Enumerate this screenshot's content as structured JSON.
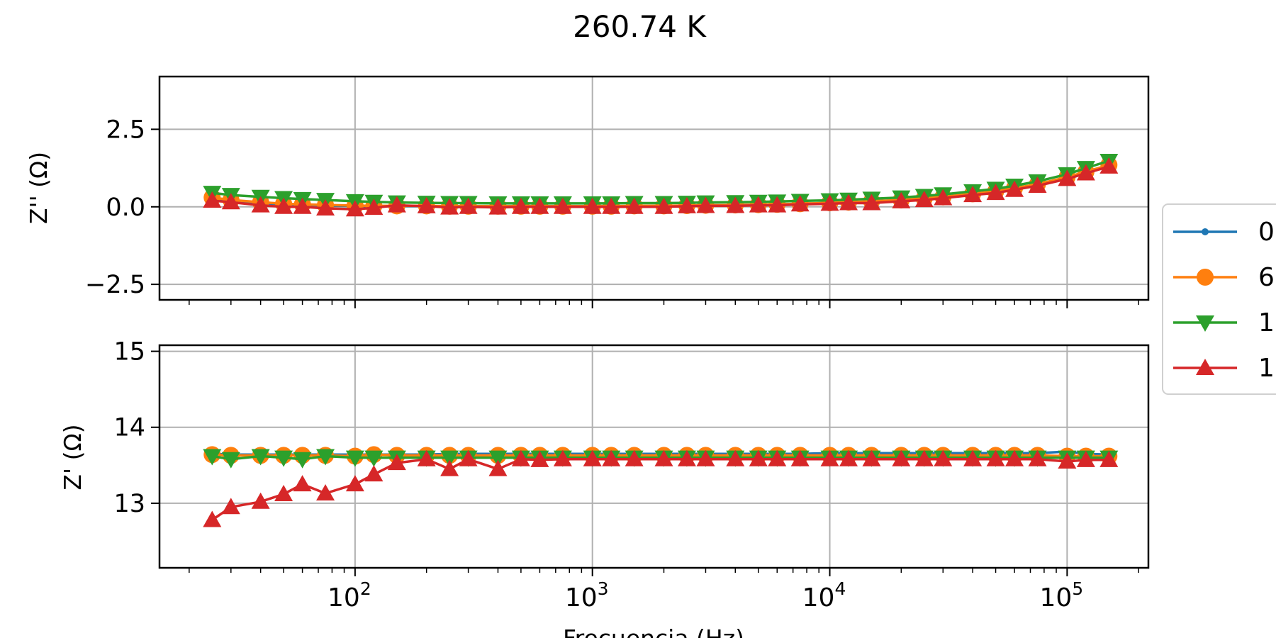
{
  "figure": {
    "title": "260.74 K",
    "legend_placement": "right, outside (clipped)",
    "colors": {
      "s0": "#1f77b4",
      "s1": "#ff7f0e",
      "s2": "#2ca02c",
      "s3": "#d62728",
      "grid": "#b0b0b0"
    }
  },
  "chart_data": [
    {
      "type": "line",
      "panel": "top",
      "ylabel": "Z'' (Ω)",
      "xlabel": "",
      "xscale": "log",
      "xlim": [
        15,
        220000
      ],
      "ylim": [
        -3,
        4.2
      ],
      "yticks": [
        -2.5,
        0.0,
        2.5
      ],
      "ytick_labels": [
        "−2.5",
        "0.0",
        "2.5"
      ],
      "grid": true,
      "x": [
        25,
        30,
        40,
        50,
        60,
        75,
        100,
        120,
        150,
        200,
        250,
        300,
        400,
        500,
        600,
        750,
        1000,
        1200,
        1500,
        2000,
        2500,
        3000,
        4000,
        5000,
        6000,
        7500,
        10000,
        12000,
        15000,
        20000,
        25000,
        30000,
        40000,
        50000,
        60000,
        75000,
        100000,
        120000,
        150000
      ],
      "series": [
        {
          "name": "0",
          "marker": "dot",
          "values": [
            0.25,
            0.18,
            0.12,
            0.08,
            0.06,
            0.04,
            0.02,
            0.02,
            0.02,
            0.02,
            0.02,
            0.02,
            0.02,
            0.02,
            0.02,
            0.02,
            0.02,
            0.02,
            0.02,
            0.03,
            0.04,
            0.05,
            0.06,
            0.07,
            0.08,
            0.1,
            0.13,
            0.15,
            0.17,
            0.22,
            0.27,
            0.32,
            0.42,
            0.5,
            0.6,
            0.72,
            0.95,
            1.12,
            1.35
          ]
        },
        {
          "name": "6",
          "marker": "circle",
          "values": [
            0.3,
            0.22,
            0.15,
            0.1,
            0.08,
            0.06,
            0.04,
            0.03,
            0.03,
            0.03,
            0.02,
            0.02,
            0.02,
            0.02,
            0.02,
            0.02,
            0.02,
            0.02,
            0.03,
            0.03,
            0.04,
            0.05,
            0.06,
            0.07,
            0.08,
            0.1,
            0.13,
            0.15,
            0.18,
            0.22,
            0.27,
            0.32,
            0.42,
            0.5,
            0.6,
            0.73,
            0.96,
            1.13,
            1.35
          ]
        },
        {
          "name": "1",
          "marker": "triangle-down",
          "values": [
            0.45,
            0.38,
            0.32,
            0.28,
            0.25,
            0.22,
            0.18,
            0.16,
            0.14,
            0.13,
            0.12,
            0.12,
            0.11,
            0.11,
            0.11,
            0.11,
            0.11,
            0.11,
            0.12,
            0.12,
            0.13,
            0.14,
            0.15,
            0.16,
            0.17,
            0.19,
            0.21,
            0.23,
            0.26,
            0.3,
            0.35,
            0.4,
            0.5,
            0.58,
            0.68,
            0.82,
            1.05,
            1.25,
            1.48
          ]
        },
        {
          "name": "1",
          "marker": "triangle-up",
          "values": [
            0.2,
            0.15,
            0.05,
            0.0,
            0.0,
            -0.05,
            -0.08,
            -0.03,
            0.05,
            0.02,
            -0.02,
            0.0,
            -0.02,
            0.0,
            0.0,
            0.0,
            0.0,
            0.0,
            0.0,
            0.0,
            0.02,
            0.03,
            0.03,
            0.05,
            0.05,
            0.08,
            0.1,
            0.12,
            0.12,
            0.18,
            0.22,
            0.28,
            0.38,
            0.45,
            0.55,
            0.68,
            0.9,
            1.08,
            1.3
          ]
        }
      ]
    },
    {
      "type": "line",
      "panel": "bottom",
      "ylabel": "Z' (Ω)",
      "xlabel": "Frecuencia (Hz)",
      "xscale": "log",
      "xlim": [
        15,
        220000
      ],
      "ylim": [
        12.15,
        15.08
      ],
      "xticks": [
        100,
        1000,
        10000,
        100000
      ],
      "xtick_labels": [
        {
          "base": "10",
          "exp": "2"
        },
        {
          "base": "10",
          "exp": "3"
        },
        {
          "base": "10",
          "exp": "4"
        },
        {
          "base": "10",
          "exp": "5"
        }
      ],
      "yticks": [
        13,
        14,
        15
      ],
      "ytick_labels": [
        "13",
        "14",
        "15"
      ],
      "grid": true,
      "x": [
        25,
        30,
        40,
        50,
        60,
        75,
        100,
        120,
        150,
        200,
        250,
        300,
        400,
        500,
        600,
        750,
        1000,
        1200,
        1500,
        2000,
        2500,
        3000,
        4000,
        5000,
        6000,
        7500,
        10000,
        12000,
        15000,
        20000,
        25000,
        30000,
        40000,
        50000,
        60000,
        75000,
        100000,
        120000,
        150000
      ],
      "series": [
        {
          "name": "0",
          "marker": "dot",
          "values": [
            13.65,
            13.64,
            13.64,
            13.64,
            13.64,
            13.64,
            13.64,
            13.64,
            13.64,
            13.64,
            13.65,
            13.65,
            13.65,
            13.65,
            13.65,
            13.65,
            13.65,
            13.65,
            13.65,
            13.65,
            13.65,
            13.65,
            13.65,
            13.65,
            13.65,
            13.65,
            13.66,
            13.66,
            13.66,
            13.66,
            13.66,
            13.66,
            13.66,
            13.66,
            13.66,
            13.66,
            13.68,
            13.65,
            13.64
          ]
        },
        {
          "name": "6",
          "marker": "circle",
          "values": [
            13.64,
            13.63,
            13.63,
            13.63,
            13.63,
            13.63,
            13.62,
            13.64,
            13.63,
            13.63,
            13.63,
            13.63,
            13.63,
            13.63,
            13.63,
            13.63,
            13.63,
            13.63,
            13.63,
            13.63,
            13.63,
            13.63,
            13.63,
            13.63,
            13.63,
            13.63,
            13.63,
            13.63,
            13.63,
            13.63,
            13.63,
            13.63,
            13.63,
            13.63,
            13.63,
            13.63,
            13.62,
            13.62,
            13.62
          ]
        },
        {
          "name": "1",
          "marker": "triangle-down",
          "values": [
            13.62,
            13.58,
            13.62,
            13.6,
            13.58,
            13.62,
            13.6,
            13.6,
            13.6,
            13.6,
            13.6,
            13.6,
            13.6,
            13.6,
            13.6,
            13.6,
            13.6,
            13.6,
            13.6,
            13.6,
            13.6,
            13.6,
            13.6,
            13.6,
            13.6,
            13.6,
            13.6,
            13.6,
            13.6,
            13.6,
            13.6,
            13.6,
            13.6,
            13.6,
            13.6,
            13.6,
            13.6,
            13.6,
            13.6
          ]
        },
        {
          "name": "1",
          "marker": "triangle-up",
          "values": [
            12.78,
            12.95,
            13.02,
            13.12,
            13.25,
            13.13,
            13.25,
            13.38,
            13.53,
            13.58,
            13.45,
            13.58,
            13.45,
            13.58,
            13.57,
            13.58,
            13.58,
            13.58,
            13.58,
            13.58,
            13.58,
            13.58,
            13.58,
            13.58,
            13.58,
            13.58,
            13.58,
            13.58,
            13.58,
            13.58,
            13.58,
            13.58,
            13.58,
            13.58,
            13.58,
            13.58,
            13.55,
            13.57,
            13.57
          ]
        }
      ]
    }
  ]
}
